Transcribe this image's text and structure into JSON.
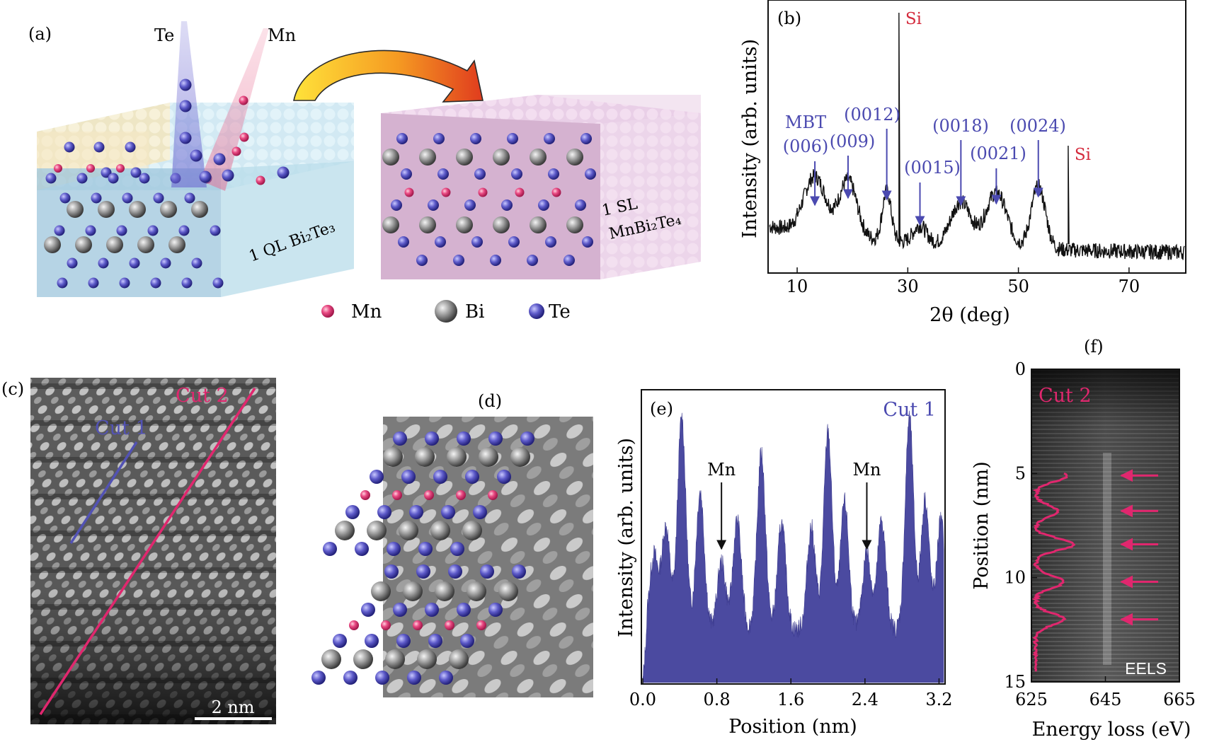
{
  "panel_a": {
    "label": "(a)",
    "beam_labels": {
      "te": "Te",
      "mn": "Mn"
    },
    "block_left_label": "1 QL Bi₂Te₃",
    "block_right_label_1": "1 SL",
    "block_right_label_2": "MnBi₂Te₄",
    "legend": [
      {
        "text": "Mn",
        "color": "#e0427a"
      },
      {
        "text": "Bi",
        "color": "#8f8f8f"
      },
      {
        "text": "Te",
        "color": "#5a57c7"
      }
    ]
  },
  "panel_b": {
    "label": "(b)",
    "peak_labels": [
      {
        "line1": "MBT",
        "line2": "(006)"
      },
      {
        "line1": "",
        "line2": "(009)"
      },
      {
        "line1": "",
        "line2": "(0012)"
      },
      {
        "line1": "",
        "line2": "(0015)"
      },
      {
        "line1": "",
        "line2": "(0018)"
      },
      {
        "line1": "",
        "line2": "(0021)"
      },
      {
        "line1": "",
        "line2": "(0024)"
      }
    ],
    "si_labels": [
      "Si",
      "Si"
    ]
  },
  "panel_c": {
    "label": "(c)",
    "cut1": "Cut 1",
    "cut2": "Cut 2",
    "scale_bar": "2 nm"
  },
  "panel_d": {
    "label": "(d)"
  },
  "panel_e": {
    "label": "(e)",
    "series_label": "Cut 1",
    "mn_annotations": [
      "Mn",
      "Mn"
    ]
  },
  "panel_f": {
    "label": "(f)",
    "series_label": "Cut 2",
    "eels": "EELS"
  },
  "chart_data": [
    {
      "id": "b",
      "type": "line",
      "xlabel": "2θ (deg)",
      "ylabel": "Intensity (arb. units)",
      "xlim": [
        5,
        80
      ],
      "x_ticks": [
        10,
        30,
        50,
        70
      ],
      "peaks_2theta": [
        13.2,
        19.2,
        26.2,
        28.4,
        32.2,
        39.6,
        46.0,
        53.6,
        59.0
      ],
      "peaks_named": [
        "MBT (006)",
        "(009)",
        "(0012)",
        "Si",
        "(0015)",
        "(0018)",
        "(0021)",
        "(0024)",
        "Si"
      ],
      "color": "#111111"
    },
    {
      "id": "e",
      "type": "area",
      "xlabel": "Position (nm)",
      "ylabel": "Intensity (arb. units)",
      "xlim": [
        0,
        3.25
      ],
      "x_ticks": [
        "0.0",
        "0.8",
        "1.6",
        "2.4",
        "3.2"
      ],
      "peaks_position_nm": [
        0.12,
        0.25,
        0.42,
        0.62,
        0.85,
        1.02,
        1.28,
        1.5,
        1.82,
        2.0,
        2.18,
        2.42,
        2.58,
        2.88,
        3.05,
        3.22
      ],
      "mn_positions_nm": [
        0.85,
        2.42
      ],
      "color": "#4b4aa0"
    },
    {
      "id": "f",
      "type": "line",
      "xlabel": "Energy loss (eV)",
      "ylabel": "Position (nm)",
      "xlim": [
        625,
        665
      ],
      "ylim": [
        0,
        15
      ],
      "x_ticks": [
        "625",
        "645",
        "665"
      ],
      "y_ticks": [
        "0",
        "5",
        "10",
        "15"
      ],
      "profile_peaks_nm": [
        5.1,
        6.8,
        8.4,
        10.2,
        12.0
      ],
      "arrow_positions_nm": [
        5.1,
        6.8,
        8.4,
        10.2,
        12.0
      ],
      "color": "#e0276e"
    }
  ]
}
